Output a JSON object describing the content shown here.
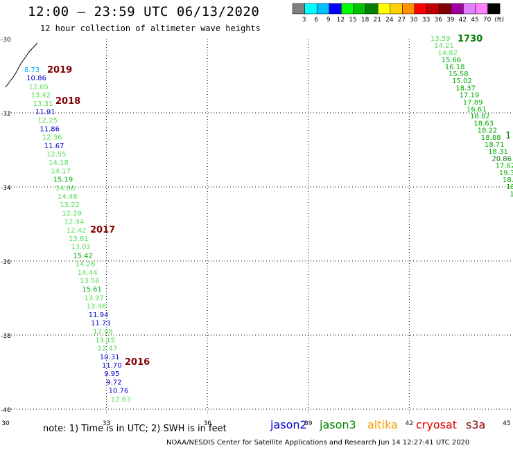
{
  "header": {
    "title": "12:00 – 23:59 UTC 06/13/2020",
    "subtitle": "12 hour collection of altimeter wave heights"
  },
  "legend": {
    "labels": [
      "3",
      "6",
      "9",
      "12",
      "15",
      "18",
      "21",
      "24",
      "27",
      "30",
      "33",
      "36",
      "39",
      "42",
      "45",
      "70",
      "(ft)"
    ],
    "colors": [
      "#808080",
      "#00ffff",
      "#00c0ff",
      "#0000ff",
      "#00ff00",
      "#00c000",
      "#008000",
      "#ffff00",
      "#ffd000",
      "#ff9000",
      "#ff0000",
      "#c00000",
      "#800000",
      "#a000a0",
      "#e080ff",
      "#ff80ff",
      "#000000"
    ]
  },
  "axes": {
    "lat_labels": [
      "-30",
      "-32",
      "-34",
      "-36",
      "-38",
      "-40"
    ],
    "lon_labels": [
      "30",
      "33",
      "36",
      "39",
      "42",
      "45"
    ]
  },
  "hour_markers": [
    {
      "text": "2019",
      "color": "#800000"
    },
    {
      "text": "2018",
      "color": "#800000"
    },
    {
      "text": "2017",
      "color": "#800000"
    },
    {
      "text": "2016",
      "color": "#800000"
    },
    {
      "text": "1730",
      "color": "#008000"
    }
  ],
  "track_west": [
    {
      "v": "8.73",
      "c": "#00aaff"
    },
    {
      "v": "10.86",
      "c": "#0000cc"
    },
    {
      "v": "12.65",
      "c": "#55dd55"
    },
    {
      "v": "13.42",
      "c": "#55dd55"
    },
    {
      "v": "13.31",
      "c": "#55dd55"
    },
    {
      "v": "11.91",
      "c": "#0000cc"
    },
    {
      "v": "12.25",
      "c": "#55dd55"
    },
    {
      "v": "11.86",
      "c": "#0000cc"
    },
    {
      "v": "12.36",
      "c": "#55dd55"
    },
    {
      "v": "11.67",
      "c": "#0000cc"
    },
    {
      "v": "12.55",
      "c": "#55dd55"
    },
    {
      "v": "14.18",
      "c": "#55dd55"
    },
    {
      "v": "14.17",
      "c": "#55dd55"
    },
    {
      "v": "15.19",
      "c": "#00aa00"
    },
    {
      "v": "14.66",
      "c": "#55dd55"
    },
    {
      "v": "14.48",
      "c": "#55dd55"
    },
    {
      "v": "13.22",
      "c": "#55dd55"
    },
    {
      "v": "12.29",
      "c": "#55dd55"
    },
    {
      "v": "12.94",
      "c": "#55dd55"
    },
    {
      "v": "12.42",
      "c": "#55dd55"
    },
    {
      "v": "13.81",
      "c": "#55dd55"
    },
    {
      "v": "13.02",
      "c": "#55dd55"
    },
    {
      "v": "15.42",
      "c": "#00aa00"
    },
    {
      "v": "14.26",
      "c": "#55dd55"
    },
    {
      "v": "14.44",
      "c": "#55dd55"
    },
    {
      "v": "13.56",
      "c": "#55dd55"
    },
    {
      "v": "15.61",
      "c": "#00aa00"
    },
    {
      "v": "13.97",
      "c": "#55dd55"
    },
    {
      "v": "13.46",
      "c": "#55dd55"
    },
    {
      "v": "11.94",
      "c": "#0000cc"
    },
    {
      "v": "11.73",
      "c": "#0000cc"
    },
    {
      "v": "12.08",
      "c": "#55dd55"
    },
    {
      "v": "13.15",
      "c": "#55dd55"
    },
    {
      "v": "12.47",
      "c": "#55dd55"
    },
    {
      "v": "10.31",
      "c": "#0000cc"
    },
    {
      "v": "11.70",
      "c": "#0000cc"
    },
    {
      "v": "9.95",
      "c": "#0000cc"
    },
    {
      "v": "9.72",
      "c": "#0000cc"
    },
    {
      "v": "10.76",
      "c": "#0000cc"
    },
    {
      "v": "12.63",
      "c": "#55dd55"
    }
  ],
  "track_east": [
    {
      "v": "13.59",
      "c": "#55dd55"
    },
    {
      "v": "14.21",
      "c": "#55dd55"
    },
    {
      "v": "14.82",
      "c": "#55dd55"
    },
    {
      "v": "15.66",
      "c": "#00aa00"
    },
    {
      "v": "16.18",
      "c": "#00aa00"
    },
    {
      "v": "15.58",
      "c": "#00aa00"
    },
    {
      "v": "15.02",
      "c": "#00aa00"
    },
    {
      "v": "18.37",
      "c": "#00aa00"
    },
    {
      "v": "17.19",
      "c": "#00aa00"
    },
    {
      "v": "17.89",
      "c": "#00aa00"
    },
    {
      "v": "16.61",
      "c": "#00aa00"
    },
    {
      "v": "18.82",
      "c": "#00aa00"
    },
    {
      "v": "18.63",
      "c": "#00aa00"
    },
    {
      "v": "18.22",
      "c": "#00aa00"
    },
    {
      "v": "18.88",
      "c": "#00aa00"
    },
    {
      "v": "18.71",
      "c": "#00aa00"
    },
    {
      "v": "18.31",
      "c": "#00aa00"
    },
    {
      "v": "20.86",
      "c": "#008000"
    },
    {
      "v": "17.62",
      "c": "#00aa00"
    },
    {
      "v": "19.3",
      "c": "#00aa00"
    },
    {
      "v": "18.",
      "c": "#00aa00"
    },
    {
      "v": "18",
      "c": "#00aa00"
    },
    {
      "v": "1",
      "c": "#00aa00"
    }
  ],
  "track_east_marker": "1",
  "missions": [
    {
      "name": "jason2",
      "color": "#0000cc"
    },
    {
      "name": "jason3",
      "color": "#008000"
    },
    {
      "name": "altika",
      "color": "#ff9900"
    },
    {
      "name": "cryosat",
      "color": "#dd0000"
    },
    {
      "name": "s3a",
      "color": "#880000"
    }
  ],
  "note": "note:  1) Time is in UTC;  2) SWH is in feet",
  "credit": "NOAA/NESDIS Center for Satellite Applications and Research     Jun 14 12:27:41 UTC 2020"
}
